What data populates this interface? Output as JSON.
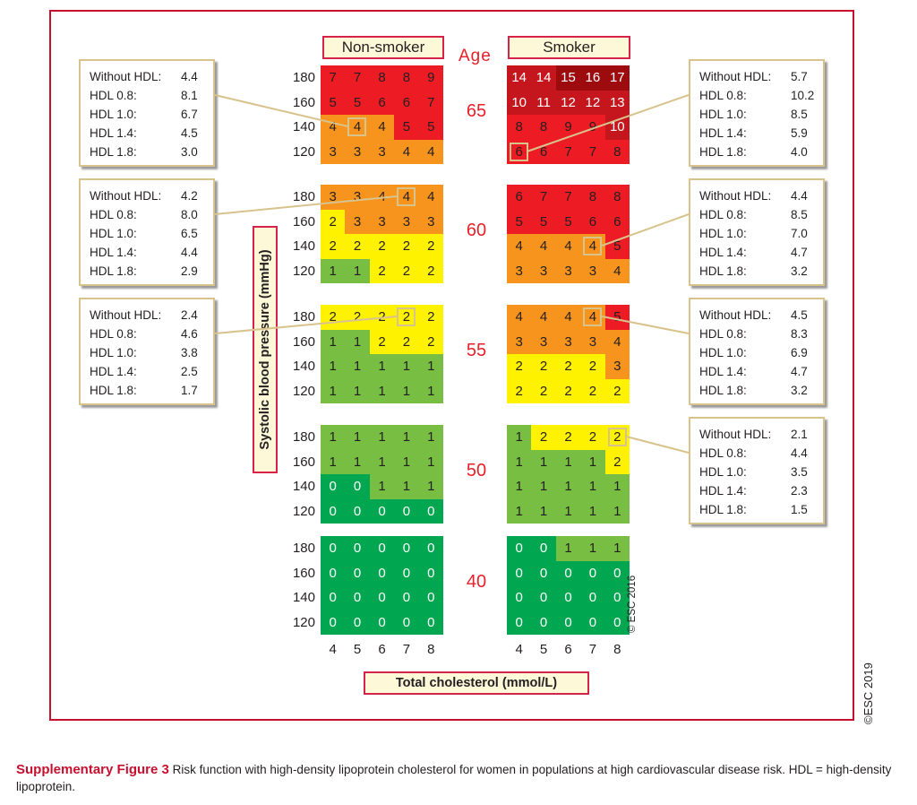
{
  "chart_data": {
    "type": "heatmap",
    "title": "Risk function with high-density lipoprotein cholesterol for women in populations at high cardiovascular disease risk",
    "xlabel": "Total cholesterol (mmol/L)",
    "ylabel": "Systolic blood pressure (mmHg)",
    "x_ticks": [
      "4",
      "5",
      "6",
      "7",
      "8"
    ],
    "y_ticks": [
      "180",
      "160",
      "140",
      "120"
    ],
    "age_label": "Age",
    "groups": [
      "Non-smoker",
      "Smoker"
    ],
    "color_scale": {
      "0": "#00a650",
      "1": "#78be43",
      "2": "#fff200",
      "3-4": "#f7941d",
      "5-9": "#ed1c24",
      "10-14": "#c4161c",
      "15+": "#9e0b0f"
    },
    "panels": [
      {
        "age": "65",
        "nonsmoker": [
          [
            7,
            7,
            8,
            8,
            9
          ],
          [
            5,
            5,
            6,
            6,
            7
          ],
          [
            4,
            4,
            4,
            5,
            5
          ],
          [
            3,
            3,
            3,
            4,
            4
          ]
        ],
        "smoker": [
          [
            14,
            14,
            15,
            16,
            17
          ],
          [
            10,
            11,
            12,
            12,
            13
          ],
          [
            8,
            8,
            9,
            9,
            10
          ],
          [
            6,
            6,
            7,
            7,
            8
          ]
        ]
      },
      {
        "age": "60",
        "nonsmoker": [
          [
            3,
            3,
            4,
            4,
            4
          ],
          [
            2,
            3,
            3,
            3,
            3
          ],
          [
            2,
            2,
            2,
            2,
            2
          ],
          [
            1,
            1,
            2,
            2,
            2
          ]
        ],
        "smoker": [
          [
            6,
            7,
            7,
            8,
            8
          ],
          [
            5,
            5,
            5,
            6,
            6
          ],
          [
            4,
            4,
            4,
            4,
            5
          ],
          [
            3,
            3,
            3,
            3,
            4
          ]
        ]
      },
      {
        "age": "55",
        "nonsmoker": [
          [
            2,
            2,
            2,
            2,
            2
          ],
          [
            1,
            1,
            2,
            2,
            2
          ],
          [
            1,
            1,
            1,
            1,
            1
          ],
          [
            1,
            1,
            1,
            1,
            1
          ]
        ],
        "smoker": [
          [
            4,
            4,
            4,
            4,
            5
          ],
          [
            3,
            3,
            3,
            3,
            4
          ],
          [
            2,
            2,
            2,
            2,
            3
          ],
          [
            2,
            2,
            2,
            2,
            2
          ]
        ]
      },
      {
        "age": "50",
        "nonsmoker": [
          [
            1,
            1,
            1,
            1,
            1
          ],
          [
            1,
            1,
            1,
            1,
            1
          ],
          [
            0,
            0,
            1,
            1,
            1
          ],
          [
            0,
            0,
            0,
            0,
            0
          ]
        ],
        "smoker": [
          [
            1,
            2,
            2,
            2,
            2
          ],
          [
            1,
            1,
            1,
            1,
            2
          ],
          [
            1,
            1,
            1,
            1,
            1
          ],
          [
            1,
            1,
            1,
            1,
            1
          ]
        ]
      },
      {
        "age": "40",
        "nonsmoker": [
          [
            0,
            0,
            0,
            0,
            0
          ],
          [
            0,
            0,
            0,
            0,
            0
          ],
          [
            0,
            0,
            0,
            0,
            0
          ],
          [
            0,
            0,
            0,
            0,
            0
          ]
        ],
        "smoker": [
          [
            0,
            0,
            1,
            1,
            1
          ],
          [
            0,
            0,
            0,
            0,
            0
          ],
          [
            0,
            0,
            0,
            0,
            0
          ],
          [
            0,
            0,
            0,
            0,
            0
          ]
        ]
      }
    ],
    "callouts": [
      {
        "side": "left",
        "panel": 0,
        "group": "nonsmoker",
        "row": 2,
        "col": 1,
        "rows": [
          [
            "Without HDL:",
            "4.4"
          ],
          [
            "HDL 0.8:",
            "8.1"
          ],
          [
            "HDL 1.0:",
            "6.7"
          ],
          [
            "HDL 1.4:",
            "4.5"
          ],
          [
            "HDL 1.8:",
            "3.0"
          ]
        ]
      },
      {
        "side": "left",
        "panel": 1,
        "group": "nonsmoker",
        "row": 0,
        "col": 3,
        "rows": [
          [
            "Without HDL:",
            "4.2"
          ],
          [
            "HDL 0.8:",
            "8.0"
          ],
          [
            "HDL 1.0:",
            "6.5"
          ],
          [
            "HDL 1.4:",
            "4.4"
          ],
          [
            "HDL 1.8:",
            "2.9"
          ]
        ]
      },
      {
        "side": "left",
        "panel": 2,
        "group": "nonsmoker",
        "row": 0,
        "col": 3,
        "rows": [
          [
            "Without HDL:",
            "2.4"
          ],
          [
            "HDL 0.8:",
            "4.6"
          ],
          [
            "HDL 1.0:",
            "3.8"
          ],
          [
            "HDL 1.4:",
            "2.5"
          ],
          [
            "HDL 1.8:",
            "1.7"
          ]
        ]
      },
      {
        "side": "right",
        "panel": 0,
        "group": "smoker",
        "row": 3,
        "col": 0,
        "rows": [
          [
            "Without HDL:",
            "5.7"
          ],
          [
            "HDL 0.8:",
            "10.2"
          ],
          [
            "HDL 1.0:",
            "8.5"
          ],
          [
            "HDL 1.4:",
            "5.9"
          ],
          [
            "HDL 1.8:",
            "4.0"
          ]
        ]
      },
      {
        "side": "right",
        "panel": 1,
        "group": "smoker",
        "row": 2,
        "col": 3,
        "rows": [
          [
            "Without HDL:",
            "4.4"
          ],
          [
            "HDL 0.8:",
            "8.5"
          ],
          [
            "HDL 1.0:",
            "7.0"
          ],
          [
            "HDL 1.4:",
            "4.7"
          ],
          [
            "HDL 1.8:",
            "3.2"
          ]
        ]
      },
      {
        "side": "right",
        "panel": 2,
        "group": "smoker",
        "row": 0,
        "col": 3,
        "rows": [
          [
            "Without HDL:",
            "4.5"
          ],
          [
            "HDL 0.8:",
            "8.3"
          ],
          [
            "HDL 1.0:",
            "6.9"
          ],
          [
            "HDL 1.4:",
            "4.7"
          ],
          [
            "HDL 1.8:",
            "3.2"
          ]
        ]
      },
      {
        "side": "right",
        "panel": 3,
        "group": "smoker",
        "row": 0,
        "col": 4,
        "rows": [
          [
            "Without HDL:",
            "2.1"
          ],
          [
            "HDL 0.8:",
            "4.4"
          ],
          [
            "HDL 1.0:",
            "3.5"
          ],
          [
            "HDL 1.4:",
            "2.3"
          ],
          [
            "HDL 1.8:",
            "1.5"
          ]
        ]
      }
    ]
  },
  "copyright_inner": "© ESC 2016",
  "copyright_outer": "©ESC 2019",
  "caption": {
    "figure_label": "Supplementary Figure 3",
    "text": " Risk function with high-density lipoprotein cholesterol for women in populations at high cardiovascular disease risk. HDL = high-density lipoprotein."
  }
}
